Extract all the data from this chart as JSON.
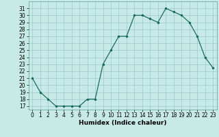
{
  "x": [
    0,
    1,
    2,
    3,
    4,
    5,
    6,
    7,
    8,
    9,
    10,
    11,
    12,
    13,
    14,
    15,
    16,
    17,
    18,
    19,
    20,
    21,
    22,
    23
  ],
  "y": [
    21,
    19,
    18,
    17,
    17,
    17,
    17,
    18,
    18,
    23,
    25,
    27,
    27,
    30,
    30,
    29.5,
    29,
    31,
    30.5,
    30,
    29,
    27,
    24,
    22.5
  ],
  "line_color": "#1a6b5a",
  "marker_color": "#1a6b5a",
  "bg_color": "#c8eae6",
  "grid_color": "#9ac8c4",
  "xlabel": "Humidex (Indice chaleur)",
  "xlim": [
    -0.5,
    23.5
  ],
  "ylim": [
    16.5,
    32
  ],
  "yticks": [
    17,
    18,
    19,
    20,
    21,
    22,
    23,
    24,
    25,
    26,
    27,
    28,
    29,
    30,
    31
  ],
  "xticks": [
    0,
    1,
    2,
    3,
    4,
    5,
    6,
    7,
    8,
    9,
    10,
    11,
    12,
    13,
    14,
    15,
    16,
    17,
    18,
    19,
    20,
    21,
    22,
    23
  ],
  "label_fontsize": 6.5,
  "tick_fontsize": 5.5
}
